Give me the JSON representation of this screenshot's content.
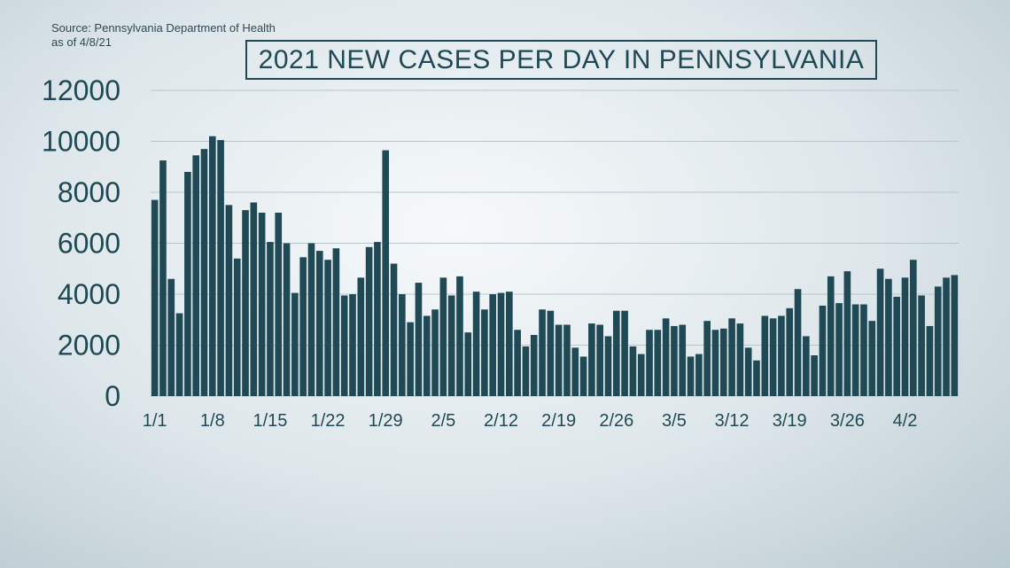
{
  "source": {
    "line1": "Source: Pennsylvania Department of Health",
    "line2": "as of 4/8/21"
  },
  "colors": {
    "bar": "#1f4a55",
    "grid": "#b8c6cc",
    "text": "#1f4a55"
  },
  "chart_data": {
    "type": "bar",
    "title": "2021 NEW CASES PER DAY IN PENNSYLVANIA",
    "xlabel": "",
    "ylabel": "",
    "ylim": [
      0,
      12000
    ],
    "yticks": [
      0,
      2000,
      4000,
      6000,
      8000,
      10000,
      12000
    ],
    "grid": true,
    "x_tick_labels": [
      {
        "index": 0,
        "label": "1/1"
      },
      {
        "index": 7,
        "label": "1/8"
      },
      {
        "index": 14,
        "label": "1/15"
      },
      {
        "index": 21,
        "label": "1/22"
      },
      {
        "index": 28,
        "label": "1/29"
      },
      {
        "index": 35,
        "label": "2/5"
      },
      {
        "index": 42,
        "label": "2/12"
      },
      {
        "index": 49,
        "label": "2/19"
      },
      {
        "index": 56,
        "label": "2/26"
      },
      {
        "index": 63,
        "label": "3/5"
      },
      {
        "index": 70,
        "label": "3/12"
      },
      {
        "index": 77,
        "label": "3/19"
      },
      {
        "index": 84,
        "label": "3/26"
      },
      {
        "index": 91,
        "label": "4/2"
      }
    ],
    "categories": [
      "1/1",
      "1/2",
      "1/3",
      "1/4",
      "1/5",
      "1/6",
      "1/7",
      "1/8",
      "1/9",
      "1/10",
      "1/11",
      "1/12",
      "1/13",
      "1/14",
      "1/15",
      "1/16",
      "1/17",
      "1/18",
      "1/19",
      "1/20",
      "1/21",
      "1/22",
      "1/23",
      "1/24",
      "1/25",
      "1/26",
      "1/27",
      "1/28",
      "1/29",
      "1/30",
      "1/31",
      "2/1",
      "2/2",
      "2/3",
      "2/4",
      "2/5",
      "2/6",
      "2/7",
      "2/8",
      "2/9",
      "2/10",
      "2/11",
      "2/12",
      "2/13",
      "2/14",
      "2/15",
      "2/16",
      "2/17",
      "2/18",
      "2/19",
      "2/20",
      "2/21",
      "2/22",
      "2/23",
      "2/24",
      "2/25",
      "2/26",
      "2/27",
      "2/28",
      "3/1",
      "3/2",
      "3/3",
      "3/4",
      "3/5",
      "3/6",
      "3/7",
      "3/8",
      "3/9",
      "3/10",
      "3/11",
      "3/12",
      "3/13",
      "3/14",
      "3/15",
      "3/16",
      "3/17",
      "3/18",
      "3/19",
      "3/20",
      "3/21",
      "3/22",
      "3/23",
      "3/24",
      "3/25",
      "3/26",
      "3/27",
      "3/28",
      "3/29",
      "3/30",
      "3/31",
      "4/1",
      "4/2",
      "4/3",
      "4/4",
      "4/5",
      "4/6",
      "4/7",
      "4/8"
    ],
    "values": [
      7700,
      9250,
      4600,
      3250,
      8800,
      9450,
      9700,
      10200,
      10050,
      7500,
      5400,
      7300,
      7600,
      7200,
      6050,
      7200,
      6000,
      4050,
      5450,
      6000,
      5700,
      5350,
      5800,
      3950,
      4000,
      4650,
      5850,
      6050,
      9650,
      5200,
      4000,
      2900,
      4450,
      3150,
      3400,
      4650,
      3950,
      4700,
      2500,
      4100,
      3400,
      4000,
      4050,
      4100,
      2600,
      1950,
      2400,
      3400,
      3350,
      2800,
      2800,
      1900,
      1550,
      2850,
      2800,
      2350,
      3350,
      3350,
      1950,
      1650,
      2600,
      2600,
      3050,
      2750,
      2800,
      1550,
      1650,
      2950,
      2600,
      2650,
      3050,
      2850,
      1900,
      1400,
      3150,
      3050,
      3150,
      3450,
      4200,
      2350,
      1600,
      3550,
      4700,
      3650,
      4900,
      3600,
      3600,
      2950,
      5000,
      4600,
      3900,
      4650,
      5350,
      3950,
      2750,
      4300,
      4650,
      4750
    ]
  }
}
